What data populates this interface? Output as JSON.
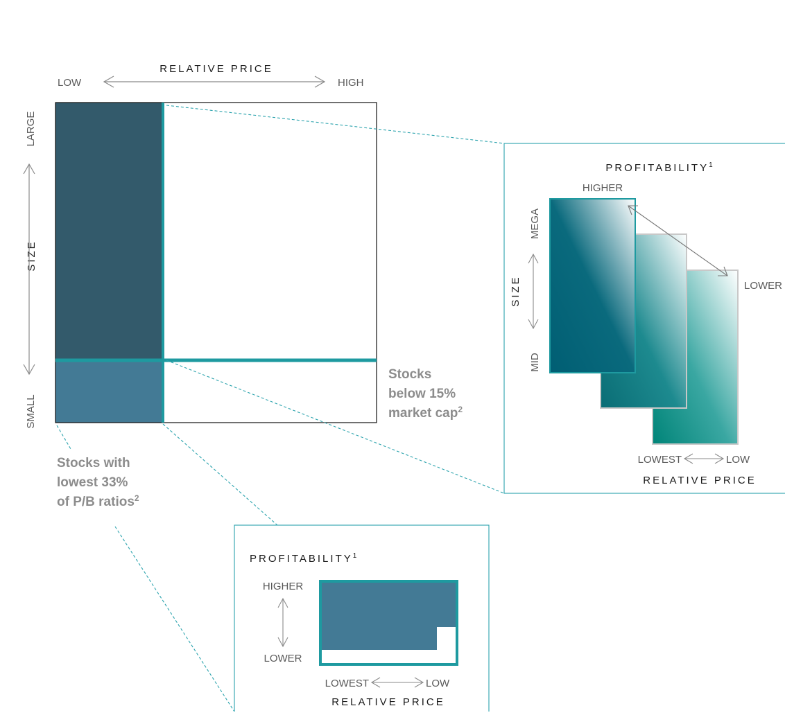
{
  "colors": {
    "dark_slate": "#335a6b",
    "steel_blue": "#437a95",
    "teal_line": "#1e9aa0",
    "teal_dashed": "#2ba3ad",
    "gray_outline": "#c8c8c8",
    "label_gray": "#595959",
    "note_gray": "#8c8c8c"
  },
  "main": {
    "x_title": "RELATIVE PRICE",
    "x_low": "LOW",
    "x_high": "HIGH",
    "y_title": "SIZE",
    "y_large": "LARGE",
    "y_small": "SMALL",
    "note_market_cap": [
      "Stocks",
      "below 15%",
      "market cap"
    ],
    "note_market_cap_sup": "2",
    "note_pb": [
      "Stocks with",
      "lowest 33%",
      "of P/B ratios"
    ],
    "note_pb_sup": "2"
  },
  "large_panel": {
    "title": "PROFITABILITY",
    "title_sup": "1",
    "higher": "HIGHER",
    "lower": "LOWER",
    "size_title": "SIZE",
    "mega": "MEGA",
    "mid": "MID",
    "price_lowest": "LOWEST",
    "price_low": "LOW",
    "price_title": "RELATIVE PRICE"
  },
  "small_panel": {
    "title": "PROFITABILITY",
    "title_sup": "1",
    "higher": "HIGHER",
    "lower": "LOWER",
    "price_lowest": "LOWEST",
    "price_low": "LOW",
    "price_title": "RELATIVE PRICE"
  },
  "icons": {
    "double_arrow": "double-headed-arrow-icon"
  }
}
